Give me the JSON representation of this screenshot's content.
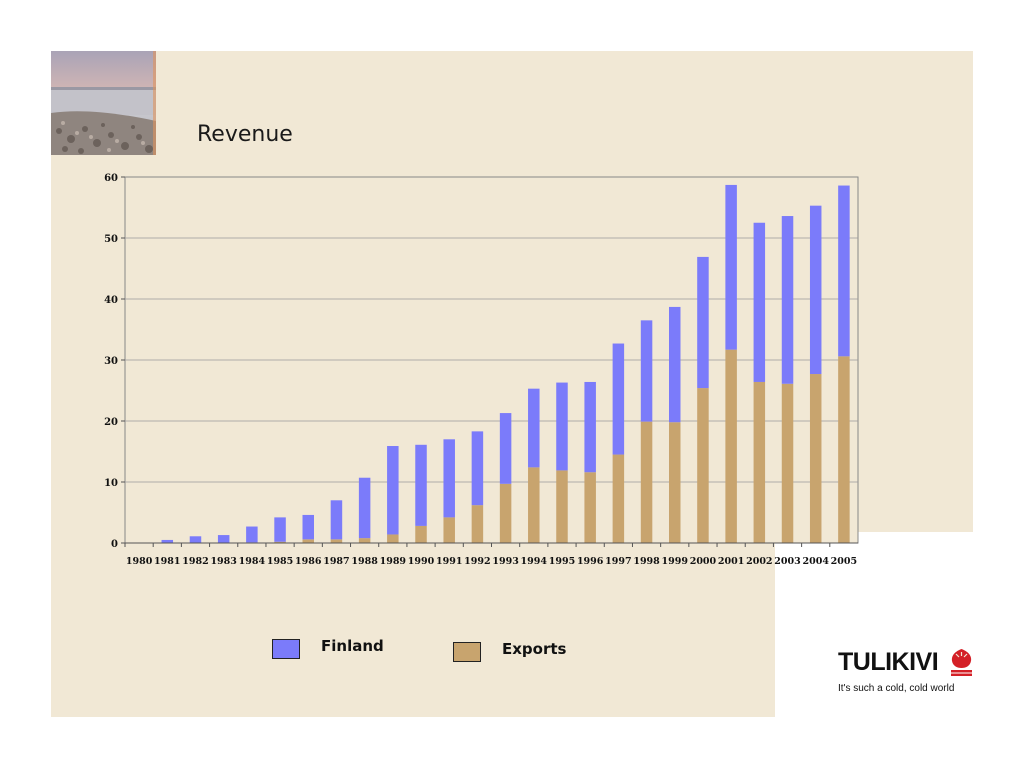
{
  "slide": {
    "title": "Revenue",
    "colors": {
      "background": "#f1e8d5",
      "finland": "#7b7bfa",
      "exports": "#c8a46e",
      "logo_red": "#d42027"
    }
  },
  "photo": {
    "icon": "seascape-photo"
  },
  "legend": [
    {
      "label": "Finland",
      "color": "#7b7bfa"
    },
    {
      "label": "Exports",
      "color": "#c8a46e"
    }
  ],
  "logo": {
    "wordmark": "TULIKIVI",
    "tagline": "It's such a cold, cold world",
    "icon": "flame-logo-icon"
  },
  "chart_data": {
    "type": "bar",
    "stacked": true,
    "title": "",
    "xlabel": "",
    "ylabel": "",
    "ylim": [
      0,
      60
    ],
    "yticks": [
      0,
      10,
      20,
      30,
      40,
      50,
      60
    ],
    "grid": true,
    "legend_position": "bottom",
    "categories": [
      "1980",
      "1981",
      "1982",
      "1983",
      "1984",
      "1985",
      "1986",
      "1987",
      "1988",
      "1989",
      "1990",
      "1991",
      "1992",
      "1993",
      "1994",
      "1995",
      "1996",
      "1997",
      "1998",
      "1999",
      "2000",
      "2001",
      "2002",
      "2003",
      "2004",
      "2005"
    ],
    "series": [
      {
        "name": "Exports",
        "color": "#c8a46e",
        "values": [
          0,
          0,
          0,
          0,
          0.1,
          0.2,
          0.6,
          0.6,
          0.8,
          1.4,
          2.8,
          4.2,
          6.2,
          9.7,
          12.4,
          11.9,
          11.6,
          14.5,
          19.9,
          19.8,
          25.4,
          31.7,
          26.4,
          26.1,
          27.7,
          30.6
        ]
      },
      {
        "name": "Finland",
        "color": "#7b7bfa",
        "values": [
          0,
          0.5,
          1.1,
          1.3,
          2.6,
          4.0,
          4.0,
          6.4,
          9.9,
          14.5,
          13.3,
          12.8,
          12.1,
          11.6,
          12.9,
          14.4,
          14.8,
          18.2,
          16.6,
          18.9,
          21.5,
          27.0,
          26.1,
          27.5,
          27.6,
          28.0
        ]
      }
    ]
  }
}
